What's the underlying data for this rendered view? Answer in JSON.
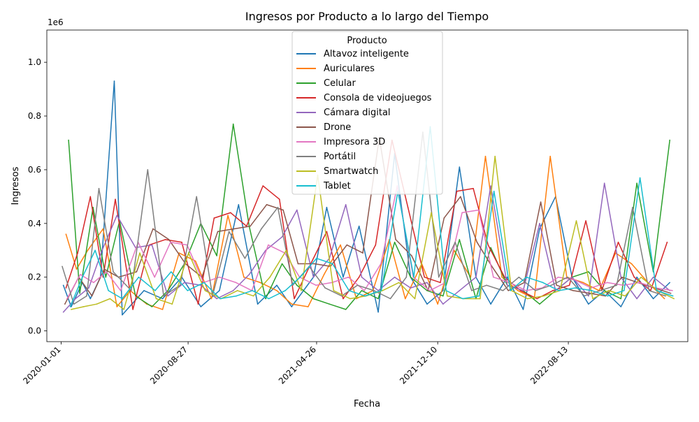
{
  "chart_data": {
    "type": "line",
    "title": "Ingresos por Producto a lo largo del Tiempo",
    "xlabel": "Fecha",
    "ylabel": "Ingresos",
    "y_offset_label": "1e6",
    "ylim": [
      -40000,
      1120000
    ],
    "xlim": [
      "2019-12-05",
      "2023-03-26"
    ],
    "x_ticks": [
      "2020-01-01",
      "2020-08-27",
      "2021-04-26",
      "2021-12-10",
      "2022-08-13"
    ],
    "y_ticks": [
      "0.0",
      "0.2",
      "0.4",
      "0.6",
      "0.8",
      "1.0"
    ],
    "legend_title": "Producto",
    "legend_position": "upper center",
    "series": [
      {
        "name": "Altavoz inteligente",
        "color": "#1f77b4",
        "x": [
          "2020-01-05",
          "2020-01-20",
          "2020-02-10",
          "2020-02-25",
          "2020-03-15",
          "2020-04-10",
          "2020-04-25",
          "2020-06-05",
          "2020-07-10",
          "2020-08-15",
          "2020-09-20",
          "2020-10-25",
          "2020-11-30",
          "2021-01-05",
          "2021-02-10",
          "2021-03-10",
          "2021-04-20",
          "2021-05-15",
          "2021-06-15",
          "2021-07-15",
          "2021-08-20",
          "2021-09-20",
          "2021-10-20",
          "2021-11-20",
          "2021-12-20",
          "2022-01-20",
          "2022-02-20",
          "2022-03-20",
          "2022-04-20",
          "2022-05-20",
          "2022-06-20",
          "2022-07-20",
          "2022-08-20",
          "2022-09-20",
          "2022-10-20",
          "2022-11-20",
          "2022-12-20",
          "2023-01-20",
          "2023-02-20"
        ],
        "values": [
          170000,
          90000,
          180000,
          120000,
          200000,
          930000,
          60000,
          150000,
          120000,
          200000,
          90000,
          150000,
          470000,
          100000,
          170000,
          90000,
          200000,
          460000,
          200000,
          390000,
          70000,
          660000,
          200000,
          100000,
          150000,
          610000,
          200000,
          100000,
          200000,
          80000,
          380000,
          500000,
          200000,
          100000,
          150000,
          90000,
          200000,
          120000,
          180000
        ]
      },
      {
        "name": "Auriculares",
        "color": "#ff7f0e",
        "x": [
          "2020-01-10",
          "2020-01-30",
          "2020-02-20",
          "2020-03-20",
          "2020-04-15",
          "2020-05-10",
          "2020-06-10",
          "2020-07-10",
          "2020-08-10",
          "2020-09-10",
          "2020-10-10",
          "2020-11-10",
          "2020-12-10",
          "2021-01-10",
          "2021-02-10",
          "2021-03-10",
          "2021-04-10",
          "2021-05-10",
          "2021-06-10",
          "2021-07-10",
          "2021-08-10",
          "2021-09-10",
          "2021-10-10",
          "2021-11-10",
          "2021-12-10",
          "2022-01-10",
          "2022-02-10",
          "2022-03-10",
          "2022-04-10",
          "2022-05-10",
          "2022-06-10",
          "2022-07-10",
          "2022-08-10",
          "2022-09-10",
          "2022-10-10",
          "2022-11-10",
          "2022-12-10",
          "2023-01-10",
          "2023-02-10"
        ],
        "values": [
          360000,
          230000,
          300000,
          380000,
          90000,
          150000,
          100000,
          80000,
          290000,
          260000,
          120000,
          430000,
          200000,
          180000,
          150000,
          100000,
          90000,
          210000,
          320000,
          120000,
          150000,
          340000,
          120000,
          250000,
          100000,
          300000,
          200000,
          650000,
          200000,
          150000,
          120000,
          650000,
          200000,
          180000,
          150000,
          290000,
          250000,
          180000,
          120000
        ]
      },
      {
        "name": "Celular",
        "color": "#2ca02c",
        "x": [
          "2020-01-15",
          "2020-02-05",
          "2020-03-01",
          "2020-03-25",
          "2020-04-20",
          "2020-05-20",
          "2020-06-20",
          "2020-07-20",
          "2020-08-20",
          "2020-09-20",
          "2020-10-20",
          "2020-11-20",
          "2020-12-20",
          "2021-01-20",
          "2021-02-20",
          "2021-03-20",
          "2021-04-20",
          "2021-05-20",
          "2021-06-20",
          "2021-07-20",
          "2021-08-20",
          "2021-09-20",
          "2021-10-20",
          "2021-11-20",
          "2021-12-20",
          "2022-01-20",
          "2022-02-20",
          "2022-03-20",
          "2022-04-20",
          "2022-05-20",
          "2022-06-20",
          "2022-07-20",
          "2022-08-20",
          "2022-09-20",
          "2022-10-20",
          "2022-11-20",
          "2022-12-20",
          "2023-01-20",
          "2023-02-20"
        ],
        "values": [
          710000,
          140000,
          460000,
          200000,
          410000,
          130000,
          90000,
          150000,
          250000,
          400000,
          280000,
          770000,
          390000,
          120000,
          250000,
          170000,
          120000,
          100000,
          80000,
          150000,
          120000,
          330000,
          200000,
          150000,
          130000,
          340000,
          120000,
          310000,
          170000,
          150000,
          100000,
          150000,
          200000,
          220000,
          150000,
          120000,
          550000,
          220000,
          710000
        ]
      },
      {
        "name": "Consola de videojuegos",
        "color": "#d62728",
        "x": [
          "2020-01-10",
          "2020-02-01",
          "2020-02-25",
          "2020-03-20",
          "2020-04-12",
          "2020-05-15",
          "2020-06-15",
          "2020-07-15",
          "2020-08-15",
          "2020-09-15",
          "2020-10-15",
          "2020-11-15",
          "2020-12-15",
          "2021-01-15",
          "2021-02-15",
          "2021-03-15",
          "2021-04-15",
          "2021-05-15",
          "2021-06-15",
          "2021-07-15",
          "2021-08-15",
          "2021-09-15",
          "2021-10-15",
          "2021-11-15",
          "2021-12-15",
          "2022-01-15",
          "2022-02-15",
          "2022-03-15",
          "2022-04-15",
          "2022-05-15",
          "2022-06-15",
          "2022-07-15",
          "2022-08-15",
          "2022-09-15",
          "2022-10-15",
          "2022-11-15",
          "2022-12-15",
          "2023-01-15",
          "2023-02-15"
        ],
        "values": [
          160000,
          290000,
          500000,
          200000,
          490000,
          80000,
          320000,
          340000,
          330000,
          100000,
          420000,
          440000,
          390000,
          540000,
          490000,
          120000,
          250000,
          370000,
          120000,
          200000,
          320000,
          710000,
          460000,
          200000,
          180000,
          520000,
          530000,
          320000,
          200000,
          150000,
          120000,
          150000,
          170000,
          410000,
          150000,
          330000,
          200000,
          150000,
          330000
        ]
      },
      {
        "name": "Cámara digital",
        "color": "#9467bd",
        "x": [
          "2020-01-05",
          "2020-01-28",
          "2020-02-22",
          "2020-03-18",
          "2020-04-15",
          "2020-05-20",
          "2020-06-20",
          "2020-07-20",
          "2020-08-20",
          "2020-09-20",
          "2020-10-20",
          "2020-11-20",
          "2020-12-20",
          "2021-01-20",
          "2021-02-20",
          "2021-03-20",
          "2021-04-20",
          "2021-05-20",
          "2021-06-20",
          "2021-07-20",
          "2021-08-20",
          "2021-09-20",
          "2021-10-20",
          "2021-11-20",
          "2021-12-20",
          "2022-01-20",
          "2022-02-20",
          "2022-03-20",
          "2022-04-20",
          "2022-05-20",
          "2022-06-20",
          "2022-07-20",
          "2022-08-20",
          "2022-09-20",
          "2022-10-20",
          "2022-11-20",
          "2022-12-20",
          "2023-01-20",
          "2023-02-20"
        ],
        "values": [
          70000,
          120000,
          160000,
          300000,
          430000,
          310000,
          320000,
          130000,
          180000,
          170000,
          120000,
          150000,
          210000,
          300000,
          350000,
          450000,
          200000,
          270000,
          470000,
          200000,
          150000,
          200000,
          160000,
          180000,
          100000,
          150000,
          200000,
          540000,
          170000,
          150000,
          400000,
          150000,
          200000,
          130000,
          550000,
          200000,
          120000,
          200000,
          150000
        ]
      },
      {
        "name": "Drone",
        "color": "#8c564b",
        "x": [
          "2020-01-08",
          "2020-02-03",
          "2020-02-28",
          "2020-03-22",
          "2020-04-18",
          "2020-05-22",
          "2020-06-22",
          "2020-07-22",
          "2020-08-22",
          "2020-09-22",
          "2020-10-22",
          "2020-11-22",
          "2020-12-22",
          "2021-01-22",
          "2021-02-22",
          "2021-03-22",
          "2021-04-22",
          "2021-05-22",
          "2021-06-22",
          "2021-07-22",
          "2021-08-22",
          "2021-09-22",
          "2021-10-22",
          "2021-11-22",
          "2021-12-22",
          "2022-01-22",
          "2022-02-22",
          "2022-03-22",
          "2022-04-22",
          "2022-05-22",
          "2022-06-22",
          "2022-07-22",
          "2022-08-22",
          "2022-09-22",
          "2022-10-22",
          "2022-11-22",
          "2022-12-22",
          "2023-01-22",
          "2023-02-22"
        ],
        "values": [
          100000,
          200000,
          130000,
          230000,
          200000,
          220000,
          380000,
          340000,
          250000,
          200000,
          370000,
          380000,
          390000,
          470000,
          450000,
          250000,
          250000,
          240000,
          320000,
          290000,
          720000,
          340000,
          280000,
          150000,
          420000,
          500000,
          330000,
          240000,
          150000,
          180000,
          480000,
          170000,
          150000,
          140000,
          130000,
          200000,
          180000,
          160000,
          140000
        ]
      },
      {
        "name": "Impresora 3D",
        "color": "#e377c2",
        "x": [
          "2020-01-12",
          "2020-02-06",
          "2020-03-02",
          "2020-03-26",
          "2020-04-22",
          "2020-05-25",
          "2020-06-25",
          "2020-07-25",
          "2020-08-25",
          "2020-09-25",
          "2020-10-25",
          "2020-11-25",
          "2020-12-25",
          "2021-01-25",
          "2021-02-25",
          "2021-03-25",
          "2021-04-25",
          "2021-05-25",
          "2021-06-25",
          "2021-07-25",
          "2021-08-25",
          "2021-09-25",
          "2021-10-25",
          "2021-11-25",
          "2021-12-25",
          "2022-01-25",
          "2022-02-25",
          "2022-03-25",
          "2022-04-25",
          "2022-05-25",
          "2022-06-25",
          "2022-07-25",
          "2022-08-25",
          "2022-09-25",
          "2022-10-25",
          "2022-11-25",
          "2022-12-25",
          "2023-01-25",
          "2023-02-25"
        ],
        "values": [
          120000,
          210000,
          180000,
          220000,
          150000,
          330000,
          200000,
          330000,
          320000,
          180000,
          200000,
          180000,
          150000,
          320000,
          290000,
          200000,
          170000,
          180000,
          200000,
          150000,
          250000,
          540000,
          200000,
          150000,
          180000,
          440000,
          450000,
          200000,
          180000,
          150000,
          160000,
          200000,
          190000,
          160000,
          180000,
          170000,
          180000,
          160000,
          150000
        ]
      },
      {
        "name": "Portátil",
        "color": "#7f7f7f",
        "x": [
          "2020-01-03",
          "2020-01-25",
          "2020-02-18",
          "2020-03-12",
          "2020-04-08",
          "2020-05-12",
          "2020-06-12",
          "2020-07-12",
          "2020-08-12",
          "2020-09-12",
          "2020-10-12",
          "2020-11-12",
          "2020-12-12",
          "2021-01-12",
          "2021-02-12",
          "2021-03-12",
          "2021-04-12",
          "2021-05-12",
          "2021-06-12",
          "2021-07-12",
          "2021-08-12",
          "2021-09-12",
          "2021-10-12",
          "2021-11-12",
          "2021-12-12",
          "2022-01-12",
          "2022-02-12",
          "2022-03-12",
          "2022-04-12",
          "2022-05-12",
          "2022-06-12",
          "2022-07-12",
          "2022-08-12",
          "2022-09-12",
          "2022-10-12",
          "2022-11-12",
          "2022-12-12",
          "2023-01-12",
          "2023-02-12"
        ],
        "values": [
          240000,
          100000,
          130000,
          530000,
          220000,
          150000,
          600000,
          130000,
          170000,
          500000,
          130000,
          370000,
          270000,
          380000,
          460000,
          170000,
          240000,
          160000,
          130000,
          170000,
          150000,
          120000,
          200000,
          740000,
          200000,
          330000,
          150000,
          170000,
          150000,
          200000,
          150000,
          170000,
          200000,
          130000,
          150000,
          170000,
          460000,
          150000,
          130000
        ]
      },
      {
        "name": "Smartwatch",
        "color": "#bcbd22",
        "x": [
          "2020-01-20",
          "2020-02-12",
          "2020-03-08",
          "2020-04-02",
          "2020-04-28",
          "2020-05-28",
          "2020-06-28",
          "2020-07-28",
          "2020-08-28",
          "2020-09-28",
          "2020-10-28",
          "2020-11-28",
          "2020-12-28",
          "2021-01-28",
          "2021-02-28",
          "2021-03-28",
          "2021-04-28",
          "2021-05-28",
          "2021-06-28",
          "2021-07-28",
          "2021-08-28",
          "2021-09-28",
          "2021-10-28",
          "2021-11-28",
          "2021-12-28",
          "2022-01-28",
          "2022-02-28",
          "2022-03-28",
          "2022-04-28",
          "2022-05-28",
          "2022-06-28",
          "2022-07-28",
          "2022-08-28",
          "2022-09-28",
          "2022-10-28",
          "2022-11-28",
          "2022-12-28",
          "2023-01-28",
          "2023-02-28"
        ],
        "values": [
          80000,
          90000,
          100000,
          120000,
          80000,
          290000,
          120000,
          100000,
          290000,
          150000,
          120000,
          150000,
          130000,
          200000,
          300000,
          150000,
          580000,
          150000,
          120000,
          130000,
          150000,
          180000,
          120000,
          440000,
          130000,
          120000,
          120000,
          650000,
          150000,
          120000,
          130000,
          150000,
          410000,
          120000,
          150000,
          130000,
          200000,
          150000,
          120000
        ]
      },
      {
        "name": "Tablet",
        "color": "#17becf",
        "x": [
          "2020-01-18",
          "2020-02-10",
          "2020-03-05",
          "2020-03-30",
          "2020-04-25",
          "2020-05-26",
          "2020-06-26",
          "2020-07-26",
          "2020-08-26",
          "2020-09-26",
          "2020-10-26",
          "2020-11-26",
          "2020-12-26",
          "2021-01-26",
          "2021-02-26",
          "2021-03-26",
          "2021-04-26",
          "2021-05-26",
          "2021-06-26",
          "2021-07-26",
          "2021-08-26",
          "2021-09-26",
          "2021-10-26",
          "2021-11-26",
          "2021-12-26",
          "2022-01-26",
          "2022-02-26",
          "2022-03-26",
          "2022-04-26",
          "2022-05-26",
          "2022-06-26",
          "2022-07-26",
          "2022-08-26",
          "2022-09-26",
          "2022-10-26",
          "2022-11-26",
          "2022-12-26",
          "2023-01-26",
          "2023-02-26"
        ],
        "values": [
          90000,
          200000,
          300000,
          150000,
          120000,
          200000,
          150000,
          220000,
          150000,
          180000,
          120000,
          130000,
          150000,
          120000,
          150000,
          200000,
          270000,
          250000,
          150000,
          130000,
          150000,
          520000,
          200000,
          760000,
          150000,
          120000,
          130000,
          520000,
          150000,
          200000,
          180000,
          150000,
          160000,
          150000,
          130000,
          150000,
          570000,
          150000,
          130000
        ]
      }
    ]
  }
}
